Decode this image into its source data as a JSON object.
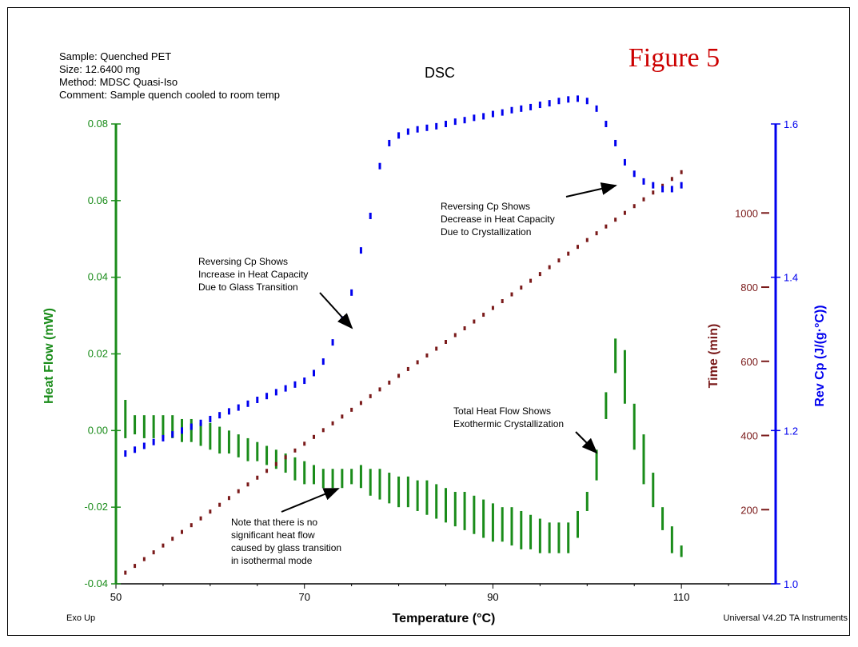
{
  "header": {
    "sample": "Sample: Quenched PET",
    "size": "Size:  12.6400 mg",
    "method": "Method: MDSC Quasi-Iso",
    "comment": "Comment: Sample quench cooled to room temp",
    "title": "DSC",
    "figure_label": "Figure 5"
  },
  "footer": {
    "left": "Exo Up",
    "right": "Universal V4.2D TA Instruments"
  },
  "colors": {
    "heat_flow": "#1a8c1a",
    "time": "#7a1a1a",
    "rev_cp": "#0000ee",
    "figure_label": "#cc0000"
  },
  "chart_data": {
    "type": "scatter",
    "title": "DSC",
    "xlabel": "Temperature (°C)",
    "xlim": [
      50,
      120
    ],
    "x_ticks": [
      "50",
      "70",
      "90",
      "110"
    ],
    "axes": {
      "left": {
        "label": "Heat Flow (mW)",
        "ylim": [
          -0.04,
          0.08
        ],
        "ticks": [
          "-0.04",
          "-0.02",
          "0.00",
          "0.02",
          "0.04",
          "0.06",
          "0.08"
        ]
      },
      "right_inner": {
        "label": "Time (min)",
        "ylim": [
          0,
          1240
        ],
        "ticks": [
          "200",
          "400",
          "600",
          "800",
          "1000"
        ]
      },
      "right_outer": {
        "label": "Rev Cp (J/(g·°C))",
        "ylim": [
          1.0,
          1.6
        ],
        "ticks": [
          "1.0",
          "1.2",
          "1.4",
          "1.6"
        ]
      }
    },
    "series": [
      {
        "name": "Heat Flow (mW)",
        "axis": "left",
        "style": "vertical-bars",
        "bars": [
          [
            51,
            0.008,
            -0.002
          ],
          [
            52,
            0.004,
            -0.001
          ],
          [
            53,
            0.004,
            -0.002
          ],
          [
            54,
            0.004,
            -0.002
          ],
          [
            55,
            0.004,
            -0.002
          ],
          [
            56,
            0.004,
            -0.002
          ],
          [
            57,
            0.003,
            -0.003
          ],
          [
            58,
            0.003,
            -0.003
          ],
          [
            59,
            0.002,
            -0.004
          ],
          [
            60,
            0.002,
            -0.005
          ],
          [
            61,
            0.001,
            -0.006
          ],
          [
            62,
            0.0,
            -0.006
          ],
          [
            63,
            -0.001,
            -0.007
          ],
          [
            64,
            -0.002,
            -0.008
          ],
          [
            65,
            -0.003,
            -0.008
          ],
          [
            66,
            -0.004,
            -0.009
          ],
          [
            67,
            -0.005,
            -0.01
          ],
          [
            68,
            -0.006,
            -0.011
          ],
          [
            69,
            -0.007,
            -0.013
          ],
          [
            70,
            -0.008,
            -0.014
          ],
          [
            71,
            -0.009,
            -0.014
          ],
          [
            72,
            -0.01,
            -0.015
          ],
          [
            73,
            -0.01,
            -0.015
          ],
          [
            74,
            -0.01,
            -0.015
          ],
          [
            75,
            -0.01,
            -0.014
          ],
          [
            76,
            -0.009,
            -0.015
          ],
          [
            77,
            -0.01,
            -0.017
          ],
          [
            78,
            -0.01,
            -0.018
          ],
          [
            79,
            -0.011,
            -0.019
          ],
          [
            80,
            -0.012,
            -0.02
          ],
          [
            81,
            -0.012,
            -0.02
          ],
          [
            82,
            -0.013,
            -0.021
          ],
          [
            83,
            -0.013,
            -0.022
          ],
          [
            84,
            -0.014,
            -0.023
          ],
          [
            85,
            -0.015,
            -0.024
          ],
          [
            86,
            -0.016,
            -0.025
          ],
          [
            87,
            -0.016,
            -0.026
          ],
          [
            88,
            -0.017,
            -0.027
          ],
          [
            89,
            -0.018,
            -0.028
          ],
          [
            90,
            -0.019,
            -0.029
          ],
          [
            91,
            -0.02,
            -0.029
          ],
          [
            92,
            -0.02,
            -0.03
          ],
          [
            93,
            -0.021,
            -0.031
          ],
          [
            94,
            -0.022,
            -0.031
          ],
          [
            95,
            -0.023,
            -0.032
          ],
          [
            96,
            -0.024,
            -0.032
          ],
          [
            97,
            -0.024,
            -0.032
          ],
          [
            98,
            -0.024,
            -0.032
          ],
          [
            99,
            -0.021,
            -0.028
          ],
          [
            100,
            -0.016,
            -0.021
          ],
          [
            101,
            -0.005,
            -0.013
          ],
          [
            102,
            0.01,
            0.003
          ],
          [
            103,
            0.024,
            0.015
          ],
          [
            104,
            0.021,
            0.007
          ],
          [
            105,
            0.007,
            -0.005
          ],
          [
            106,
            -0.001,
            -0.014
          ],
          [
            107,
            -0.011,
            -0.02
          ],
          [
            108,
            -0.02,
            -0.026
          ],
          [
            109,
            -0.025,
            -0.032
          ],
          [
            110,
            -0.03,
            -0.033
          ]
        ]
      },
      {
        "name": "Time (min)",
        "axis": "right_inner",
        "style": "dots",
        "x_start": 51,
        "x_end": 110,
        "x_step": 1,
        "values_start": 30,
        "values_end": 1110
      },
      {
        "name": "Rev Cp (J/(g·°C))",
        "axis": "right_outer",
        "style": "bars",
        "points": [
          [
            51,
            1.17
          ],
          [
            52,
            1.175
          ],
          [
            53,
            1.18
          ],
          [
            54,
            1.185
          ],
          [
            55,
            1.19
          ],
          [
            56,
            1.195
          ],
          [
            57,
            1.2
          ],
          [
            58,
            1.205
          ],
          [
            59,
            1.21
          ],
          [
            60,
            1.215
          ],
          [
            61,
            1.22
          ],
          [
            62,
            1.225
          ],
          [
            63,
            1.23
          ],
          [
            64,
            1.235
          ],
          [
            65,
            1.24
          ],
          [
            66,
            1.245
          ],
          [
            67,
            1.25
          ],
          [
            68,
            1.255
          ],
          [
            69,
            1.26
          ],
          [
            70,
            1.265
          ],
          [
            71,
            1.275
          ],
          [
            72,
            1.29
          ],
          [
            73,
            1.315
          ],
          [
            74,
            1.345
          ],
          [
            75,
            1.38
          ],
          [
            76,
            1.435
          ],
          [
            77,
            1.48
          ],
          [
            78,
            1.545
          ],
          [
            79,
            1.575
          ],
          [
            80,
            1.585
          ],
          [
            81,
            1.59
          ],
          [
            82,
            1.593
          ],
          [
            83,
            1.595
          ],
          [
            84,
            1.597
          ],
          [
            85,
            1.6
          ],
          [
            86,
            1.603
          ],
          [
            87,
            1.605
          ],
          [
            88,
            1.608
          ],
          [
            89,
            1.61
          ],
          [
            90,
            1.613
          ],
          [
            91,
            1.615
          ],
          [
            92,
            1.618
          ],
          [
            93,
            1.62
          ],
          [
            94,
            1.622
          ],
          [
            95,
            1.625
          ],
          [
            96,
            1.627
          ],
          [
            97,
            1.63
          ],
          [
            98,
            1.632
          ],
          [
            99,
            1.633
          ],
          [
            100,
            1.63
          ],
          [
            101,
            1.62
          ],
          [
            102,
            1.6
          ],
          [
            103,
            1.575
          ],
          [
            104,
            1.55
          ],
          [
            105,
            1.535
          ],
          [
            106,
            1.525
          ],
          [
            107,
            1.52
          ],
          [
            108,
            1.515
          ],
          [
            109,
            1.515
          ],
          [
            110,
            1.52
          ]
        ]
      }
    ],
    "annotations": [
      {
        "lines": [
          "Reversing Cp Shows",
          "Increase in Heat Capacity",
          "Due to Glass Transition"
        ]
      },
      {
        "lines": [
          "Reversing Cp Shows",
          "Decrease in Heat Capacity",
          "Due to Crystallization"
        ]
      },
      {
        "lines": [
          "Total Heat Flow Shows",
          "Exothermic Crystallization"
        ]
      },
      {
        "lines": [
          "Note that there is no",
          "significant heat flow",
          "caused by glass transition",
          "in isothermal mode"
        ]
      }
    ]
  }
}
